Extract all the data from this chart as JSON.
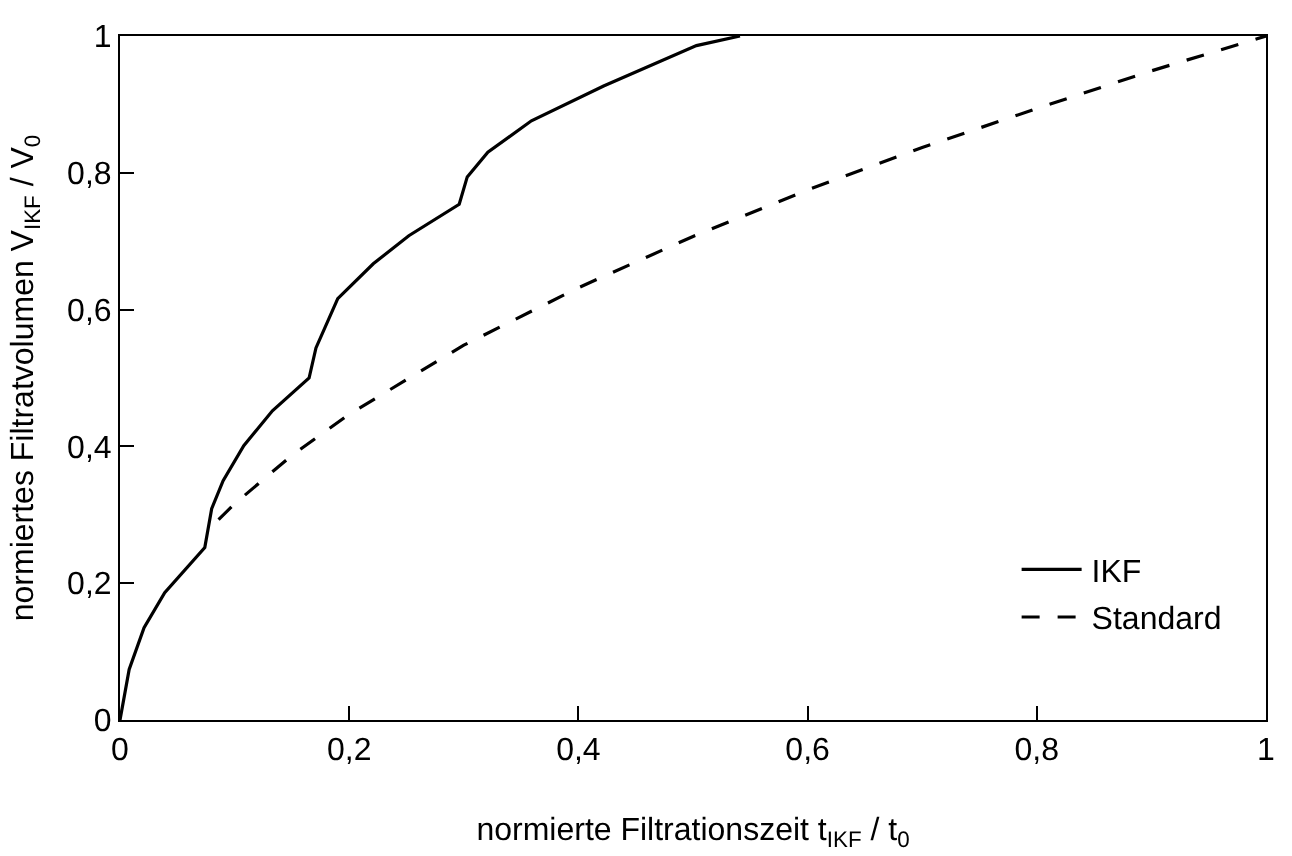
{
  "chart_data": {
    "type": "line",
    "xlabel": "normierte Filtrationszeit t$_{IKF}$ / t$_{0}$",
    "ylabel": "normiertes Filtratvolumen V$_{IKF}$ / V$_{0}$",
    "xlim": [
      0,
      1
    ],
    "ylim": [
      0,
      1
    ],
    "xticks": [
      0,
      {
        "value": 0.2,
        "label": "0,2"
      },
      {
        "value": 0.4,
        "label": "0,4"
      },
      {
        "value": 0.6,
        "label": "0,6"
      },
      {
        "value": 0.8,
        "label": "0,8"
      },
      1
    ],
    "yticks": [
      0,
      {
        "value": 0.2,
        "label": "0,2"
      },
      {
        "value": 0.4,
        "label": "0,4"
      },
      {
        "value": 0.6,
        "label": "0,6"
      },
      {
        "value": 0.8,
        "label": "0,8"
      },
      1
    ],
    "legend": "bottom right",
    "marker": "none",
    "series": [
      {
        "name": "IKF",
        "color": "#000000",
        "line_style": "solid",
        "x": [
          0,
          0.008,
          0.021,
          0.039,
          0.074,
          0.08,
          0.09,
          0.108,
          0.133,
          0.165,
          0.171,
          0.19,
          0.221,
          0.252,
          0.296,
          0.303,
          0.321,
          0.359,
          0.422,
          0.503,
          0.541
        ],
        "values": [
          0,
          0.074,
          0.135,
          0.186,
          0.252,
          0.309,
          0.35,
          0.401,
          0.452,
          0.5,
          0.544,
          0.616,
          0.667,
          0.708,
          0.754,
          0.794,
          0.83,
          0.876,
          0.927,
          0.986,
          1.0
        ]
      },
      {
        "name": "Standard",
        "color": "#000000",
        "line_style": "dashed",
        "x": [
          0.086,
          0.1,
          0.15,
          0.2,
          0.3,
          0.4,
          0.5,
          0.6,
          0.7,
          0.8,
          0.9,
          1.0
        ],
        "values": [
          0.293,
          0.316,
          0.387,
          0.447,
          0.548,
          0.632,
          0.707,
          0.775,
          0.837,
          0.894,
          0.949,
          1.0
        ]
      }
    ]
  }
}
